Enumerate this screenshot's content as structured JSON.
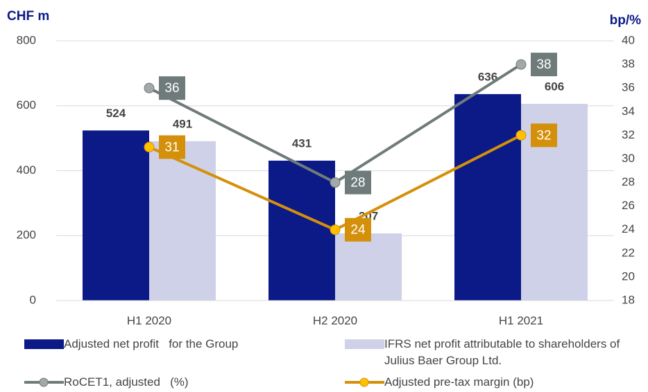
{
  "chart_data": {
    "type": "bar_line",
    "y_label": "CHF m",
    "y2_label": "bp/%",
    "categories": [
      "H1 2020",
      "H2 2020",
      "H1 2021"
    ],
    "ylim": [
      0,
      800
    ],
    "yticks": [
      0,
      200,
      400,
      600,
      800
    ],
    "y2lim": [
      18,
      40
    ],
    "y2ticks": [
      18,
      20,
      22,
      24,
      26,
      28,
      30,
      32,
      34,
      36,
      38,
      40
    ],
    "series": [
      {
        "name": "Adjusted net profit   for the Group",
        "type": "bar",
        "color": "#0b1a87",
        "values": [
          524,
          431,
          636
        ]
      },
      {
        "name": "IFRS net profit attributable to shareholders of Julius Baer Group Ltd.",
        "type": "bar",
        "color": "#ced1e8",
        "values": [
          491,
          207,
          606
        ]
      },
      {
        "name": "RoCET1, adjusted   (%)",
        "type": "line",
        "axis": "y2",
        "color": "#6f7b7b",
        "marker_color": "#a3a8a8",
        "values": [
          36,
          28,
          38
        ]
      },
      {
        "name": "Adjusted pre-tax margin (bp)",
        "type": "line",
        "axis": "y2",
        "color": "#d4900a",
        "marker_color": "#ffc000",
        "values": [
          31,
          24,
          32
        ]
      }
    ],
    "legend": "bottom"
  }
}
